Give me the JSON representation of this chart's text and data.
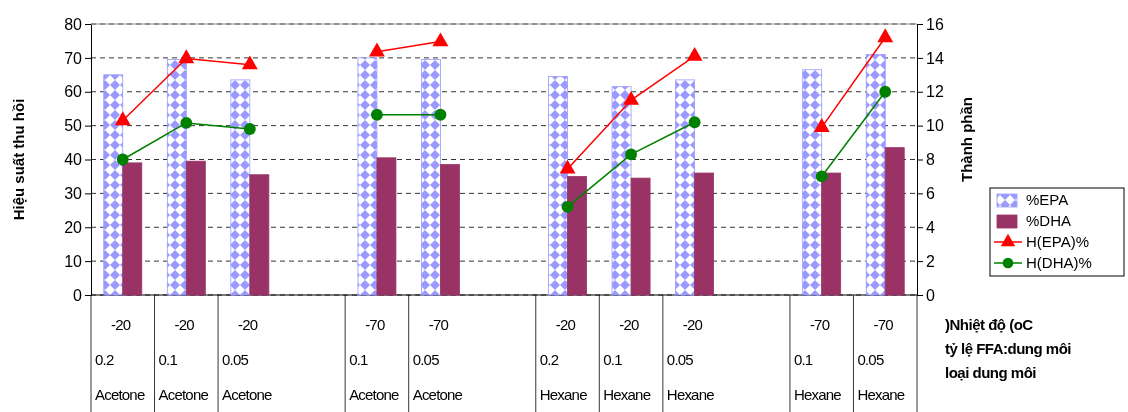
{
  "chart_data": {
    "type": "bar",
    "ylabel": "Hiệu suất thu hồi",
    "y2label": "Thành phần",
    "categories": [
      "-20\n0.2\nAcetone",
      "-20\n0.1\nAcetone",
      "-20\n0.05\nAcetone",
      null,
      "-70\n0.1\nAcetone",
      "-70\n0.05\nAcetone",
      null,
      "-20\n0.2\nHexane",
      "-20\n0.1\nHexane",
      "-20\n0.05\nHexane",
      null,
      "-70\n0.1\nHexane",
      "-70\n0.05\nHexane"
    ],
    "series": [
      {
        "name": "%EPA",
        "axis": "y2",
        "color": "#9999ff",
        "values": [
          13.0,
          13.9,
          12.7,
          null,
          14.0,
          13.9,
          null,
          12.9,
          12.3,
          12.7,
          null,
          13.3,
          14.2
        ]
      },
      {
        "name": "%DHA",
        "axis": "y2",
        "color": "#993366",
        "values": [
          7.8,
          7.9,
          7.1,
          null,
          8.1,
          7.7,
          null,
          7.0,
          6.9,
          7.2,
          null,
          7.2,
          8.7
        ]
      },
      {
        "name": "H(EPA)%",
        "type": "line",
        "axis": "y",
        "color": "#ff0000",
        "marker": "triangle",
        "values": [
          51.5,
          69.8,
          68,
          null,
          71.8,
          74.8,
          null,
          37.2,
          57.5,
          70.5,
          null,
          49.5,
          76
        ]
      },
      {
        "name": "H(DHA)%",
        "type": "line",
        "axis": "y",
        "color": "#008000",
        "marker": "circle",
        "values": [
          40,
          50.8,
          49,
          null,
          53.2,
          53.2,
          null,
          26,
          41.5,
          51,
          null,
          35,
          60
        ]
      }
    ],
    "ylim": [
      0,
      80
    ],
    "yticks": [
      0,
      10,
      20,
      30,
      40,
      50,
      60,
      70,
      80
    ],
    "y2lim": [
      0,
      16
    ],
    "y2ticks": [
      0,
      2,
      4,
      6,
      8,
      10,
      12,
      14,
      16
    ],
    "grid": "y",
    "legend": "right",
    "annotations": [
      ")Nhiệt độ (oC",
      "tỷ lệ FFA:dung môi",
      "loại dung môi"
    ]
  }
}
